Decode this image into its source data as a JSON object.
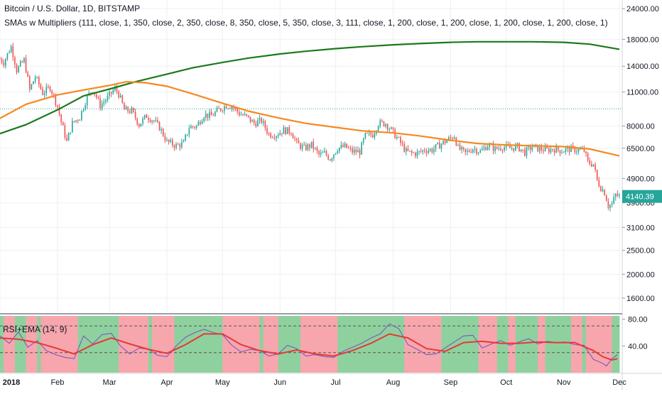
{
  "header": {
    "symbol_line": "Bitcoin / U.S. Dollar, 1D, BITSTAMP",
    "indicator_line": "SMAs w Multipliers (111, close, 1, 350, close, 2, 350, close, 8, 350, close, 5, 350, close, 3, 111, close, 1, 200, close, 1, 200, close, 1, 200, close, 1, 200, close, 1)"
  },
  "rsi": {
    "label": "RSI+EMA (14, 9)"
  },
  "last_price": "4140.39",
  "colors": {
    "bull_candle": "#26a69a",
    "bear_candle": "#ef5350",
    "sma_green": "#1b7a1b",
    "sma_orange": "#f5891f",
    "rsi_green_bg": "#8fd19e",
    "rsi_red_bg": "#f7a6ad",
    "rsi_line": "#7e57c2",
    "price_line": "#26a69a"
  },
  "chart_data": [
    {
      "type": "candlestick",
      "title": "Bitcoin / U.S. Dollar, 1D, BITSTAMP",
      "y_scale": "log",
      "ylim": [
        1400,
        26000
      ],
      "y_ticks": [
        "24000.00",
        "18000.00",
        "14000.00",
        "11000.00",
        "8000.00",
        "6500.00",
        "4900.00",
        "3900.00",
        "3100.00",
        "2500.00",
        "2000.00",
        "1600.00"
      ],
      "x_ticks": [
        "2018",
        "Feb",
        "Mar",
        "Apr",
        "May",
        "Jun",
        "Jul",
        "Aug",
        "Sep",
        "Oct",
        "Nov",
        "Dec"
      ],
      "horizontal_line": 9400,
      "last_value": 4140.39,
      "close_path": [
        [
          "2018-01-01",
          15000
        ],
        [
          "2018-01-03",
          14500
        ],
        [
          "2018-01-07",
          16800
        ],
        [
          "2018-01-10",
          13500
        ],
        [
          "2018-01-14",
          14800
        ],
        [
          "2018-01-17",
          11200
        ],
        [
          "2018-01-20",
          12700
        ],
        [
          "2018-01-24",
          10900
        ],
        [
          "2018-01-28",
          11500
        ],
        [
          "2018-02-01",
          9600
        ],
        [
          "2018-02-03",
          8300
        ],
        [
          "2018-02-06",
          6900
        ],
        [
          "2018-02-09",
          8200
        ],
        [
          "2018-02-13",
          8700
        ],
        [
          "2018-02-17",
          10500
        ],
        [
          "2018-02-20",
          11300
        ],
        [
          "2018-02-24",
          9700
        ],
        [
          "2018-02-28",
          10400
        ],
        [
          "2018-03-04",
          11400
        ],
        [
          "2018-03-06",
          10800
        ],
        [
          "2018-03-09",
          9300
        ],
        [
          "2018-03-13",
          9200
        ],
        [
          "2018-03-17",
          8100
        ],
        [
          "2018-03-21",
          8800
        ],
        [
          "2018-03-25",
          8400
        ],
        [
          "2018-03-28",
          7900
        ],
        [
          "2018-04-01",
          6900
        ],
        [
          "2018-04-06",
          6650
        ],
        [
          "2018-04-10",
          6800
        ],
        [
          "2018-04-13",
          7900
        ],
        [
          "2018-04-17",
          8000
        ],
        [
          "2018-04-21",
          8900
        ],
        [
          "2018-04-25",
          8800
        ],
        [
          "2018-04-29",
          9300
        ],
        [
          "2018-05-03",
          9700
        ],
        [
          "2018-05-06",
          9650
        ],
        [
          "2018-05-10",
          9000
        ],
        [
          "2018-05-14",
          8700
        ],
        [
          "2018-05-18",
          8200
        ],
        [
          "2018-05-22",
          8400
        ],
        [
          "2018-05-26",
          7400
        ],
        [
          "2018-05-30",
          7400
        ],
        [
          "2018-06-03",
          7700
        ],
        [
          "2018-06-07",
          7600
        ],
        [
          "2018-06-10",
          6800
        ],
        [
          "2018-06-14",
          6500
        ],
        [
          "2018-06-18",
          6700
        ],
        [
          "2018-06-22",
          6100
        ],
        [
          "2018-06-25",
          6200
        ],
        [
          "2018-06-28",
          5900
        ],
        [
          "2018-07-02",
          6500
        ],
        [
          "2018-07-06",
          6600
        ],
        [
          "2018-07-10",
          6300
        ],
        [
          "2018-07-14",
          6300
        ],
        [
          "2018-07-17",
          7300
        ],
        [
          "2018-07-21",
          7400
        ],
        [
          "2018-07-24",
          8200
        ],
        [
          "2018-07-28",
          8200
        ],
        [
          "2018-07-31",
          7700
        ],
        [
          "2018-08-04",
          7000
        ],
        [
          "2018-08-08",
          6300
        ],
        [
          "2018-08-11",
          6200
        ],
        [
          "2018-08-14",
          6200
        ],
        [
          "2018-08-18",
          6400
        ],
        [
          "2018-08-22",
          6400
        ],
        [
          "2018-08-26",
          6700
        ],
        [
          "2018-08-30",
          7000
        ],
        [
          "2018-09-03",
          7300
        ],
        [
          "2018-09-05",
          6500
        ],
        [
          "2018-09-09",
          6200
        ],
        [
          "2018-09-13",
          6500
        ],
        [
          "2018-09-17",
          6300
        ],
        [
          "2018-09-21",
          6700
        ],
        [
          "2018-09-25",
          6450
        ],
        [
          "2018-09-29",
          6600
        ],
        [
          "2018-10-03",
          6500
        ],
        [
          "2018-10-07",
          6600
        ],
        [
          "2018-10-11",
          6250
        ],
        [
          "2018-10-15",
          6600
        ],
        [
          "2018-10-19",
          6450
        ],
        [
          "2018-10-23",
          6400
        ],
        [
          "2018-10-27",
          6450
        ],
        [
          "2018-10-31",
          6350
        ],
        [
          "2018-11-04",
          6450
        ],
        [
          "2018-11-08",
          6400
        ],
        [
          "2018-11-12",
          6350
        ],
        [
          "2018-11-14",
          5700
        ],
        [
          "2018-11-17",
          5600
        ],
        [
          "2018-11-19",
          4800
        ],
        [
          "2018-11-21",
          4500
        ],
        [
          "2018-11-23",
          4300
        ],
        [
          "2018-11-25",
          3800
        ],
        [
          "2018-11-27",
          3850
        ],
        [
          "2018-11-29",
          4200
        ],
        [
          "2018-12-01",
          4140
        ]
      ],
      "series": [
        {
          "name": "",
          "color": "#1b7a1b",
          "points": [
            [
              "2018-01-01",
              7450
            ],
            [
              "2018-01-15",
              8100
            ],
            [
              "2018-02-01",
              9300
            ],
            [
              "2018-02-15",
              10600
            ],
            [
              "2018-03-01",
              11300
            ],
            [
              "2018-03-15",
              12100
            ],
            [
              "2018-04-01",
              13000
            ],
            [
              "2018-04-15",
              13800
            ],
            [
              "2018-05-01",
              14500
            ],
            [
              "2018-05-15",
              15100
            ],
            [
              "2018-06-01",
              15700
            ],
            [
              "2018-06-15",
              16100
            ],
            [
              "2018-07-01",
              16500
            ],
            [
              "2018-07-15",
              16800
            ],
            [
              "2018-08-01",
              17100
            ],
            [
              "2018-08-15",
              17300
            ],
            [
              "2018-09-01",
              17500
            ],
            [
              "2018-09-15",
              17600
            ],
            [
              "2018-10-01",
              17600
            ],
            [
              "2018-10-15",
              17600
            ],
            [
              "2018-11-01",
              17500
            ],
            [
              "2018-11-15",
              17200
            ],
            [
              "2018-12-01",
              16400
            ]
          ]
        },
        {
          "name": "",
          "color": "#f5891f",
          "points": [
            [
              "2018-01-01",
              8600
            ],
            [
              "2018-01-15",
              9800
            ],
            [
              "2018-02-01",
              10700
            ],
            [
              "2018-02-15",
              11200
            ],
            [
              "2018-03-01",
              11700
            ],
            [
              "2018-03-10",
              12100
            ],
            [
              "2018-03-20",
              12000
            ],
            [
              "2018-04-01",
              11600
            ],
            [
              "2018-04-15",
              10800
            ],
            [
              "2018-05-01",
              9900
            ],
            [
              "2018-05-15",
              9200
            ],
            [
              "2018-06-01",
              8600
            ],
            [
              "2018-06-15",
              8200
            ],
            [
              "2018-07-01",
              7900
            ],
            [
              "2018-07-15",
              7650
            ],
            [
              "2018-08-01",
              7500
            ],
            [
              "2018-08-15",
              7300
            ],
            [
              "2018-09-01",
              7000
            ],
            [
              "2018-09-15",
              6800
            ],
            [
              "2018-10-01",
              6700
            ],
            [
              "2018-10-15",
              6650
            ],
            [
              "2018-11-01",
              6600
            ],
            [
              "2018-11-15",
              6450
            ],
            [
              "2018-12-01",
              6050
            ]
          ]
        }
      ]
    },
    {
      "type": "line",
      "title": "RSI+EMA (14, 9)",
      "ylim": [
        0,
        85
      ],
      "y_ticks": [
        "80.00",
        "40.00"
      ],
      "dashed_levels": [
        70,
        30
      ],
      "series": [
        {
          "name": "",
          "color": "#7e57c2",
          "points": [
            [
              0,
              55
            ],
            [
              5,
              44
            ],
            [
              10,
              61
            ],
            [
              15,
              38
            ],
            [
              20,
              48
            ],
            [
              25,
              33
            ],
            [
              30,
              27
            ],
            [
              35,
              23
            ],
            [
              40,
              21
            ],
            [
              45,
              55
            ],
            [
              50,
              43
            ],
            [
              55,
              57
            ],
            [
              60,
              59
            ],
            [
              65,
              40
            ],
            [
              70,
              28
            ],
            [
              75,
              37
            ],
            [
              80,
              35
            ],
            [
              85,
              26
            ],
            [
              90,
              24
            ],
            [
              95,
              40
            ],
            [
              100,
              53
            ],
            [
              105,
              60
            ],
            [
              110,
              65
            ],
            [
              115,
              60
            ],
            [
              120,
              57
            ],
            [
              125,
              41
            ],
            [
              130,
              31
            ],
            [
              135,
              35
            ],
            [
              140,
              33
            ],
            [
              145,
              25
            ],
            [
              150,
              28
            ],
            [
              155,
              41
            ],
            [
              160,
              36
            ],
            [
              165,
              25
            ],
            [
              170,
              27
            ],
            [
              175,
              24
            ],
            [
              180,
              23
            ],
            [
              185,
              32
            ],
            [
              190,
              38
            ],
            [
              195,
              44
            ],
            [
              200,
              52
            ],
            [
              205,
              58
            ],
            [
              210,
              73
            ],
            [
              215,
              66
            ],
            [
              220,
              42
            ],
            [
              225,
              35
            ],
            [
              230,
              27
            ],
            [
              235,
              28
            ],
            [
              240,
              37
            ],
            [
              245,
              46
            ],
            [
              250,
              55
            ],
            [
              255,
              56
            ],
            [
              260,
              37
            ],
            [
              265,
              43
            ],
            [
              270,
              48
            ],
            [
              275,
              41
            ],
            [
              280,
              46
            ],
            [
              285,
              51
            ],
            [
              290,
              43
            ],
            [
              295,
              47
            ],
            [
              300,
              45
            ],
            [
              305,
              46
            ],
            [
              310,
              42
            ],
            [
              315,
              41
            ],
            [
              320,
              20
            ],
            [
              325,
              14
            ],
            [
              327,
              10
            ],
            [
              330,
              21
            ],
            [
              333,
              27
            ]
          ]
        },
        {
          "name": "",
          "color": "#e53935",
          "points": [
            [
              0,
              52
            ],
            [
              10,
              50
            ],
            [
              20,
              45
            ],
            [
              30,
              37
            ],
            [
              40,
              28
            ],
            [
              50,
              42
            ],
            [
              60,
              52
            ],
            [
              70,
              43
            ],
            [
              80,
              35
            ],
            [
              90,
              29
            ],
            [
              100,
              42
            ],
            [
              110,
              58
            ],
            [
              120,
              58
            ],
            [
              130,
              42
            ],
            [
              140,
              33
            ],
            [
              150,
              28
            ],
            [
              160,
              34
            ],
            [
              170,
              28
            ],
            [
              180,
              25
            ],
            [
              190,
              33
            ],
            [
              200,
              44
            ],
            [
              210,
              58
            ],
            [
              220,
              52
            ],
            [
              230,
              36
            ],
            [
              240,
              32
            ],
            [
              250,
              45
            ],
            [
              260,
              47
            ],
            [
              270,
              44
            ],
            [
              280,
              44
            ],
            [
              290,
              46
            ],
            [
              300,
              45
            ],
            [
              310,
              45
            ],
            [
              320,
              33
            ],
            [
              325,
              24
            ],
            [
              330,
              19
            ],
            [
              333,
              21
            ]
          ]
        }
      ]
    }
  ]
}
